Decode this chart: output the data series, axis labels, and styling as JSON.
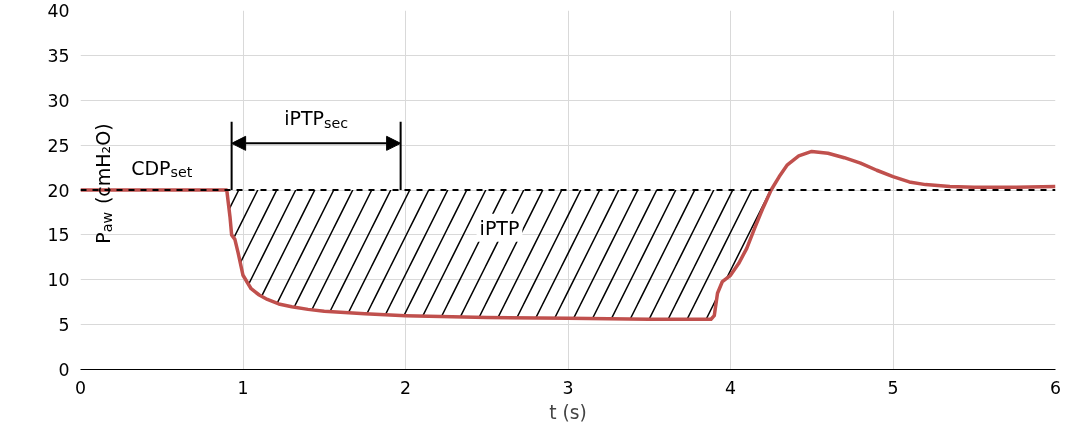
{
  "chart_data": {
    "type": "line",
    "xlabel": "t (s)",
    "ylabel": "P$_{aw}$ (cmH₂O)",
    "xlim": [
      0,
      6
    ],
    "ylim": [
      0,
      40
    ],
    "xticks": [
      0,
      1,
      2,
      3,
      4,
      5,
      6
    ],
    "yticks": [
      0,
      5,
      10,
      15,
      20,
      25,
      30,
      35,
      40
    ],
    "grid": true,
    "series": [
      {
        "color": "#c0504d",
        "x": [
          0,
          0.3,
          0.6,
          0.9,
          0.92,
          0.93,
          0.95,
          0.97,
          1.0,
          1.05,
          1.1,
          1.15,
          1.22,
          1.3,
          1.4,
          1.5,
          1.75,
          2.0,
          2.5,
          3.0,
          3.5,
          3.88,
          3.9,
          3.92,
          3.95,
          4.0,
          4.05,
          4.1,
          4.15,
          4.2,
          4.25,
          4.3,
          4.35,
          4.42,
          4.5,
          4.6,
          4.7,
          4.8,
          4.9,
          5.0,
          5.1,
          5.2,
          5.35,
          5.5,
          5.75,
          6.0
        ],
        "lower": [
          null,
          null,
          null,
          20,
          17,
          15,
          14.5,
          13,
          10.5,
          9,
          8.3,
          7.8,
          7.3,
          7,
          6.7,
          6.5,
          6.2,
          6,
          5.8,
          5.7,
          5.6,
          5.6,
          6,
          8.5,
          9.8,
          10.5,
          11.8,
          13.5,
          15.8,
          18,
          20,
          null,
          null,
          null,
          null,
          null,
          null,
          null,
          null,
          null,
          null,
          null,
          null,
          null,
          null,
          null
        ],
        "upper": [
          null,
          null,
          null,
          20,
          20,
          20,
          20,
          20,
          20,
          20,
          20,
          20,
          20,
          20,
          20,
          20,
          20,
          20,
          20,
          20,
          20,
          20,
          20,
          20,
          20,
          20,
          20,
          20,
          20,
          20,
          20,
          null,
          null,
          null,
          null,
          null,
          null,
          null,
          null,
          null,
          null,
          null,
          null,
          null,
          null,
          null
        ],
        "values": [
          20,
          20,
          20,
          20,
          17,
          15,
          14.5,
          13,
          10.5,
          9,
          8.3,
          7.8,
          7.3,
          7,
          6.7,
          6.5,
          6.2,
          6,
          5.8,
          5.7,
          5.6,
          5.6,
          6,
          8.5,
          9.8,
          10.5,
          11.8,
          13.5,
          15.8,
          18,
          20,
          21.5,
          22.8,
          23.8,
          24.3,
          24.1,
          23.6,
          23,
          22.2,
          21.5,
          20.9,
          20.6,
          20.4,
          20.3,
          20.3,
          20.4
        ]
      }
    ],
    "ref_lines": [
      {
        "axis": "y",
        "value": 20,
        "label": "CDP$_{set}$",
        "line_style": "dashed",
        "color": "#000000"
      },
      {
        "axis": "x",
        "value": 0.93,
        "color": "#000000"
      },
      {
        "axis": "x",
        "value": 1.97,
        "color": "#000000"
      }
    ],
    "annotations": [
      "iPTP$_{sec}$",
      "iPTP"
    ]
  }
}
